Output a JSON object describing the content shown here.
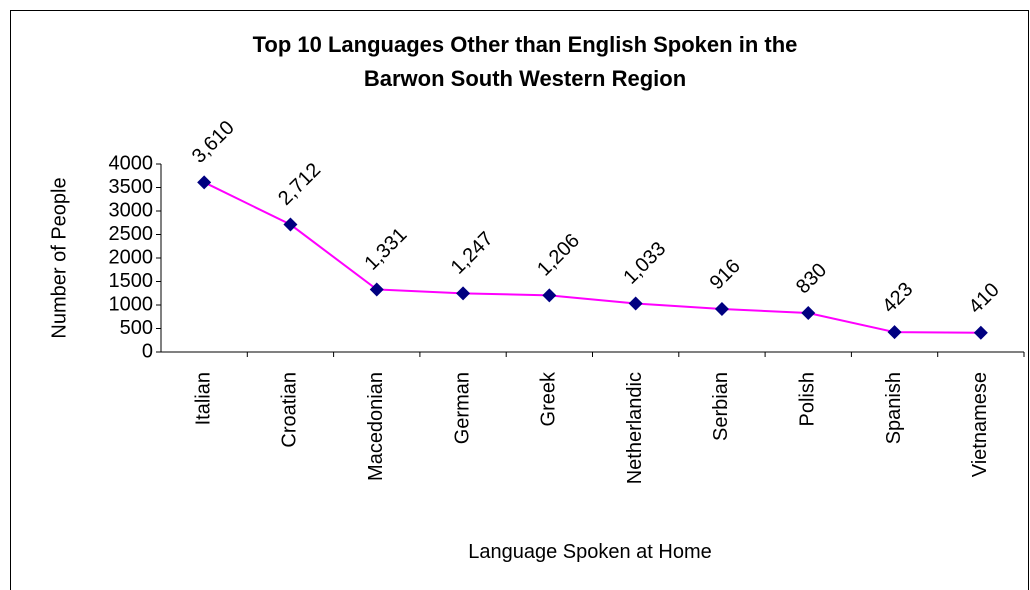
{
  "chart_data": {
    "type": "line",
    "title": [
      "Top 10 Languages Other than English Spoken in the",
      "Barwon South Western Region"
    ],
    "x_label": "Language Spoken at Home",
    "y_label": "Number of People",
    "categories": [
      "Italian",
      "Croatian",
      "Macedonian",
      "German",
      "Greek",
      "Netherlandic",
      "Serbian",
      "Polish",
      "Spanish",
      "Vietnamese"
    ],
    "series": [
      {
        "name": "Number of People",
        "color": "#ff00ff",
        "marker_color": "#000080",
        "values": [
          3610,
          2712,
          1331,
          1247,
          1206,
          1033,
          916,
          830,
          423,
          410
        ],
        "value_labels": [
          "3,610",
          "2,712",
          "1,331",
          "1,247",
          "1,206",
          "1,033",
          "916",
          "830",
          "423",
          "410"
        ]
      }
    ],
    "ylim": [
      0,
      4000
    ],
    "yticks": [
      0,
      500,
      1000,
      1500,
      2000,
      2500,
      3000,
      3500,
      4000
    ],
    "grid": false
  }
}
